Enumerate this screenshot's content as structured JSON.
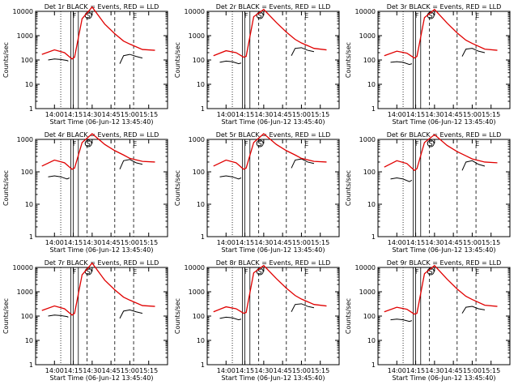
{
  "figure": {
    "ylabel": "Counts/sec",
    "xlabel": "Start Time (06-Jun-12 13:45:40)"
  },
  "chart_data": [
    {
      "type": "line",
      "title": "Det 1r BLACK = Events, RED = LLD",
      "ylabel": "Counts/sec",
      "xlabel": "Start Time (06-Jun-12 13:45:40)",
      "yscale": "log",
      "ylim": [
        1,
        10000
      ],
      "ytick_labels": [
        "1",
        "10",
        "100",
        "1000",
        "10000"
      ],
      "xtick_labels": [
        "14:00",
        "14:15",
        "14:30",
        "14:45",
        "15:00",
        "15:15"
      ],
      "markers": [
        "F",
        "S",
        "E"
      ],
      "series": [
        {
          "name": "Events",
          "color": "#000000",
          "segments": [
            {
              "x": [
                "13:55",
                "14:00",
                "14:05",
                "14:10",
                "14:11"
              ],
              "y": [
                100,
                110,
                105,
                95,
                90
              ]
            },
            {
              "x": [
                "14:52",
                "14:55",
                "15:00",
                "15:05",
                "15:10"
              ],
              "y": [
                70,
                150,
                170,
                140,
                120
              ]
            }
          ]
        },
        {
          "name": "LLD",
          "color": "#e00000",
          "segments": [
            {
              "x": [
                "13:50",
                "14:00",
                "14:08",
                "14:14",
                "14:16",
                "14:22",
                "14:30",
                "14:40",
                "14:48",
                "14:55",
                "15:00",
                "15:10",
                "15:20"
              ],
              "y": [
                170,
                260,
                200,
                110,
                130,
                5000,
                15000,
                3000,
                1200,
                600,
                450,
                270,
                250
              ]
            }
          ]
        }
      ]
    },
    {
      "type": "line",
      "title": "Det 2r BLACK = Events, RED = LLD",
      "ylabel": "Counts/sec",
      "xlabel": "Start Time (06-Jun-12 13:45:40)",
      "yscale": "log",
      "ylim": [
        1,
        10000
      ],
      "ytick_labels": [
        "1",
        "10",
        "100",
        "1000",
        "10000"
      ],
      "xtick_labels": [
        "14:00",
        "14:15",
        "14:30",
        "14:45",
        "15:00",
        "15:15"
      ],
      "markers": [
        "F",
        "S",
        "E"
      ],
      "series": [
        {
          "name": "Events",
          "color": "#000000",
          "segments": [
            {
              "x": [
                "13:55",
                "14:00",
                "14:05",
                "14:10",
                "14:12"
              ],
              "y": [
                80,
                90,
                85,
                70,
                75
              ]
            },
            {
              "x": [
                "14:52",
                "14:55",
                "15:00",
                "15:05",
                "15:10"
              ],
              "y": [
                150,
                300,
                320,
                250,
                220
              ]
            }
          ]
        },
        {
          "name": "LLD",
          "color": "#e00000",
          "segments": [
            {
              "x": [
                "13:50",
                "14:00",
                "14:08",
                "14:14",
                "14:16",
                "14:22",
                "14:30",
                "14:40",
                "14:48",
                "14:55",
                "15:00",
                "15:10",
                "15:20"
              ],
              "y": [
                150,
                240,
                200,
                130,
                140,
                6000,
                12000,
                3500,
                1400,
                700,
                500,
                300,
                260
              ]
            }
          ]
        }
      ]
    },
    {
      "type": "line",
      "title": "Det 3r BLACK = Events, RED = LLD",
      "ylabel": "Counts/sec",
      "xlabel": "Start Time (06-Jun-12 13:45:40)",
      "yscale": "log",
      "ylim": [
        1,
        10000
      ],
      "ytick_labels": [
        "1",
        "10",
        "100",
        "1000",
        "10000"
      ],
      "xtick_labels": [
        "14:00",
        "14:15",
        "14:30",
        "14:45",
        "15:00",
        "15:15"
      ],
      "markers": [
        "F",
        "S",
        "E"
      ],
      "series": [
        {
          "name": "Events",
          "color": "#000000",
          "segments": [
            {
              "x": [
                "13:55",
                "14:00",
                "14:05",
                "14:10",
                "14:12"
              ],
              "y": [
                80,
                85,
                80,
                65,
                70
              ]
            },
            {
              "x": [
                "14:52",
                "14:55",
                "15:00",
                "15:05",
                "15:10"
              ],
              "y": [
                140,
                280,
                300,
                230,
                200
              ]
            }
          ]
        },
        {
          "name": "LLD",
          "color": "#e00000",
          "segments": [
            {
              "x": [
                "13:50",
                "14:00",
                "14:08",
                "14:14",
                "14:16",
                "14:22",
                "14:30",
                "14:40",
                "14:48",
                "14:55",
                "15:00",
                "15:10",
                "15:20"
              ],
              "y": [
                150,
                230,
                190,
                120,
                140,
                5500,
                12000,
                3300,
                1300,
                650,
                480,
                280,
                250
              ]
            }
          ]
        }
      ]
    },
    {
      "type": "line",
      "title": "Det 4r BLACK = Events, RED = LLD",
      "ylabel": "Counts/sec",
      "xlabel": "Start Time (06-Jun-12 13:45:40)",
      "yscale": "log",
      "ylim": [
        1,
        1000
      ],
      "ytick_labels": [
        "1",
        "10",
        "100",
        "1000"
      ],
      "xtick_labels": [
        "14:00",
        "14:15",
        "14:30",
        "14:45",
        "15:00",
        "15:15"
      ],
      "markers": [
        "F",
        "S",
        "E"
      ],
      "series": [
        {
          "name": "Events",
          "color": "#000000",
          "segments": [
            {
              "x": [
                "13:55",
                "14:00",
                "14:05",
                "14:10",
                "14:12"
              ],
              "y": [
                70,
                75,
                70,
                60,
                65
              ]
            },
            {
              "x": [
                "14:52",
                "14:55",
                "15:00",
                "15:05",
                "15:10"
              ],
              "y": [
                120,
                220,
                240,
                190,
                170
              ]
            }
          ]
        },
        {
          "name": "LLD",
          "color": "#e00000",
          "segments": [
            {
              "x": [
                "13:50",
                "14:00",
                "14:08",
                "14:14",
                "14:16",
                "14:22",
                "14:30",
                "14:40",
                "14:48",
                "14:55",
                "15:00",
                "15:10",
                "15:20"
              ],
              "y": [
                150,
                230,
                190,
                120,
                130,
                800,
                1500,
                700,
                450,
                330,
                260,
                210,
                200
              ]
            }
          ]
        }
      ]
    },
    {
      "type": "line",
      "title": "Det 5r BLACK = Events, RED = LLD",
      "ylabel": "Counts/sec",
      "xlabel": "Start Time (06-Jun-12 13:45:40)",
      "yscale": "log",
      "ylim": [
        1,
        1000
      ],
      "ytick_labels": [
        "1",
        "10",
        "100",
        "1000"
      ],
      "xtick_labels": [
        "14:00",
        "14:15",
        "14:30",
        "14:45",
        "15:00",
        "15:15"
      ],
      "markers": [
        "F",
        "S",
        "E"
      ],
      "series": [
        {
          "name": "Events",
          "color": "#000000",
          "segments": [
            {
              "x": [
                "13:55",
                "14:00",
                "14:05",
                "14:10",
                "14:12"
              ],
              "y": [
                70,
                75,
                70,
                60,
                65
              ]
            },
            {
              "x": [
                "14:52",
                "14:55",
                "15:00",
                "15:05",
                "15:10"
              ],
              "y": [
                130,
                230,
                250,
                200,
                180
              ]
            }
          ]
        },
        {
          "name": "LLD",
          "color": "#e00000",
          "segments": [
            {
              "x": [
                "13:50",
                "14:00",
                "14:08",
                "14:14",
                "14:16",
                "14:22",
                "14:30",
                "14:40",
                "14:48",
                "14:55",
                "15:00",
                "15:10",
                "15:20"
              ],
              "y": [
                150,
                230,
                190,
                120,
                130,
                800,
                1500,
                700,
                450,
                330,
                260,
                210,
                200
              ]
            }
          ]
        }
      ]
    },
    {
      "type": "line",
      "title": "Det 6r BLACK = Events, RED = LLD",
      "ylabel": "Counts/sec",
      "xlabel": "Start Time (06-Jun-12 13:45:40)",
      "yscale": "log",
      "ylim": [
        1,
        1000
      ],
      "ytick_labels": [
        "1",
        "10",
        "100",
        "1000"
      ],
      "xtick_labels": [
        "14:00",
        "14:15",
        "14:30",
        "14:45",
        "15:00",
        "15:15"
      ],
      "markers": [
        "F",
        "S",
        "E"
      ],
      "series": [
        {
          "name": "Events",
          "color": "#000000",
          "segments": [
            {
              "x": [
                "13:55",
                "14:00",
                "14:05",
                "14:10",
                "14:12"
              ],
              "y": [
                60,
                65,
                60,
                50,
                55
              ]
            },
            {
              "x": [
                "14:52",
                "14:55",
                "15:00",
                "15:05",
                "15:10"
              ],
              "y": [
                110,
                200,
                220,
                170,
                150
              ]
            }
          ]
        },
        {
          "name": "LLD",
          "color": "#e00000",
          "segments": [
            {
              "x": [
                "13:50",
                "14:00",
                "14:08",
                "14:14",
                "14:16",
                "14:22",
                "14:30",
                "14:40",
                "14:48",
                "14:55",
                "15:00",
                "15:10",
                "15:20"
              ],
              "y": [
                140,
                220,
                180,
                110,
                125,
                800,
                1400,
                650,
                420,
                310,
                250,
                200,
                190
              ]
            }
          ]
        }
      ]
    },
    {
      "type": "line",
      "title": "Det 7r BLACK = Events, RED = LLD",
      "ylabel": "Counts/sec",
      "xlabel": "Start Time (06-Jun-12 13:45:40)",
      "yscale": "log",
      "ylim": [
        1,
        10000
      ],
      "ytick_labels": [
        "1",
        "10",
        "100",
        "1000",
        "10000"
      ],
      "xtick_labels": [
        "14:00",
        "14:15",
        "14:30",
        "14:45",
        "15:00",
        "15:15"
      ],
      "markers": [
        "F",
        "S",
        "E"
      ],
      "series": [
        {
          "name": "Events",
          "color": "#000000",
          "segments": [
            {
              "x": [
                "13:55",
                "14:00",
                "14:05",
                "14:10",
                "14:11"
              ],
              "y": [
                100,
                110,
                105,
                95,
                90
              ]
            },
            {
              "x": [
                "14:52",
                "14:55",
                "15:00",
                "15:05",
                "15:10"
              ],
              "y": [
                80,
                160,
                180,
                150,
                130
              ]
            }
          ]
        },
        {
          "name": "LLD",
          "color": "#e00000",
          "segments": [
            {
              "x": [
                "13:50",
                "14:00",
                "14:08",
                "14:14",
                "14:16",
                "14:22",
                "14:30",
                "14:40",
                "14:48",
                "14:55",
                "15:00",
                "15:10",
                "15:20"
              ],
              "y": [
                170,
                260,
                200,
                110,
                130,
                5000,
                15000,
                3000,
                1200,
                600,
                450,
                270,
                250
              ]
            }
          ]
        }
      ]
    },
    {
      "type": "line",
      "title": "Det 8r BLACK = Events, RED = LLD",
      "ylabel": "Counts/sec",
      "xlabel": "Start Time (06-Jun-12 13:45:40)",
      "yscale": "log",
      "ylim": [
        1,
        10000
      ],
      "ytick_labels": [
        "1",
        "10",
        "100",
        "1000",
        "10000"
      ],
      "xtick_labels": [
        "14:00",
        "14:15",
        "14:30",
        "14:45",
        "15:00",
        "15:15"
      ],
      "markers": [
        "F",
        "S",
        "E"
      ],
      "series": [
        {
          "name": "Events",
          "color": "#000000",
          "segments": [
            {
              "x": [
                "13:55",
                "14:00",
                "14:05",
                "14:10",
                "14:12"
              ],
              "y": [
                80,
                90,
                85,
                70,
                75
              ]
            },
            {
              "x": [
                "14:52",
                "14:55",
                "15:00",
                "15:05",
                "15:10"
              ],
              "y": [
                150,
                300,
                320,
                250,
                220
              ]
            }
          ]
        },
        {
          "name": "LLD",
          "color": "#e00000",
          "segments": [
            {
              "x": [
                "13:50",
                "14:00",
                "14:08",
                "14:14",
                "14:16",
                "14:22",
                "14:30",
                "14:40",
                "14:48",
                "14:55",
                "15:00",
                "15:10",
                "15:20"
              ],
              "y": [
                150,
                240,
                200,
                130,
                140,
                6000,
                12000,
                3500,
                1400,
                700,
                500,
                300,
                260
              ]
            }
          ]
        }
      ]
    },
    {
      "type": "line",
      "title": "Det 9r BLACK = Events, RED = LLD",
      "ylabel": "Counts/sec",
      "xlabel": "Start Time (06-Jun-12 13:45:40)",
      "yscale": "log",
      "ylim": [
        1,
        10000
      ],
      "ytick_labels": [
        "1",
        "10",
        "100",
        "1000",
        "10000"
      ],
      "xtick_labels": [
        "14:00",
        "14:15",
        "14:30",
        "14:45",
        "15:00",
        "15:15"
      ],
      "markers": [
        "F",
        "S",
        "E"
      ],
      "series": [
        {
          "name": "Events",
          "color": "#000000",
          "segments": [
            {
              "x": [
                "13:55",
                "14:00",
                "14:05",
                "14:10",
                "14:12"
              ],
              "y": [
                70,
                75,
                70,
                60,
                65
              ]
            },
            {
              "x": [
                "14:52",
                "14:55",
                "15:00",
                "15:05",
                "15:10"
              ],
              "y": [
                130,
                230,
                250,
                200,
                180
              ]
            }
          ]
        },
        {
          "name": "LLD",
          "color": "#e00000",
          "segments": [
            {
              "x": [
                "13:50",
                "14:00",
                "14:08",
                "14:14",
                "14:16",
                "14:22",
                "14:30",
                "14:40",
                "14:48",
                "14:55",
                "15:00",
                "15:10",
                "15:20"
              ],
              "y": [
                150,
                230,
                190,
                120,
                130,
                5500,
                12000,
                3300,
                1300,
                650,
                480,
                280,
                250
              ]
            }
          ]
        }
      ]
    }
  ]
}
